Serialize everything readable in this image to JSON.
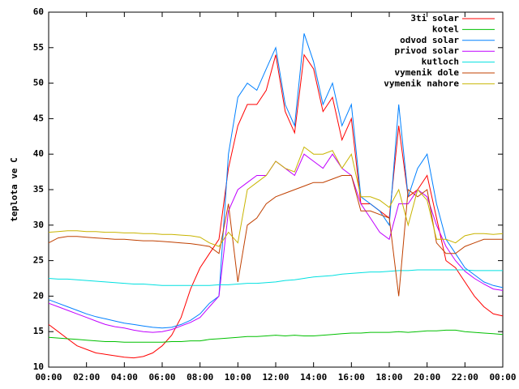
{
  "chart_data": {
    "type": "line",
    "y_label": "teplota ve C",
    "x": [
      0,
      0.5,
      1,
      1.5,
      2,
      2.5,
      3,
      3.5,
      4,
      4.5,
      5,
      5.5,
      6,
      6.5,
      7,
      7.5,
      8,
      8.5,
      9,
      9.5,
      10,
      10.5,
      11,
      11.5,
      12,
      12.5,
      13,
      13.5,
      14,
      14.5,
      15,
      15.5,
      16,
      16.5,
      17,
      17.5,
      18,
      18.5,
      19,
      19.5,
      20,
      20.5,
      21,
      21.5,
      22,
      22.5,
      23,
      23.5,
      24
    ],
    "xlim": [
      0,
      24
    ],
    "xticks": [
      {
        "value": 0,
        "label": "00:00"
      },
      {
        "value": 2,
        "label": "02:00"
      },
      {
        "value": 4,
        "label": "04:00"
      },
      {
        "value": 6,
        "label": "06:00"
      },
      {
        "value": 8,
        "label": "08:00"
      },
      {
        "value": 10,
        "label": "10:00"
      },
      {
        "value": 12,
        "label": "12:00"
      },
      {
        "value": 14,
        "label": "14:00"
      },
      {
        "value": 16,
        "label": "16:00"
      },
      {
        "value": 18,
        "label": "18:00"
      },
      {
        "value": 20,
        "label": "20:00"
      },
      {
        "value": 22,
        "label": "22:00"
      },
      {
        "value": 24,
        "label": "00:00"
      }
    ],
    "ylim": [
      10,
      60
    ],
    "yticks": [
      10,
      15,
      20,
      25,
      30,
      35,
      40,
      45,
      50,
      55,
      60
    ],
    "legend": "top-right",
    "series": [
      {
        "name": "3ti solar",
        "color": "#ff0000",
        "values": [
          16,
          15,
          14,
          13,
          12.5,
          12,
          11.8,
          11.6,
          11.4,
          11.3,
          11.5,
          12,
          13,
          14.5,
          17,
          21,
          24,
          26,
          28,
          38,
          44,
          47,
          47,
          49,
          54,
          46,
          43,
          54,
          52,
          46,
          48,
          42,
          45,
          33,
          33,
          32,
          31,
          44,
          34,
          35,
          37,
          31,
          25,
          24,
          22,
          20,
          18.5,
          17.5,
          17.2
        ]
      },
      {
        "name": "kotel",
        "color": "#00c000",
        "values": [
          14.2,
          14.1,
          14.0,
          13.9,
          13.8,
          13.7,
          13.6,
          13.6,
          13.5,
          13.5,
          13.5,
          13.5,
          13.5,
          13.6,
          13.6,
          13.7,
          13.7,
          13.9,
          14.0,
          14.1,
          14.2,
          14.3,
          14.3,
          14.4,
          14.5,
          14.4,
          14.5,
          14.4,
          14.4,
          14.5,
          14.6,
          14.7,
          14.8,
          14.8,
          14.9,
          14.9,
          14.9,
          15.0,
          14.9,
          15.0,
          15.1,
          15.1,
          15.2,
          15.2,
          15.0,
          14.9,
          14.8,
          14.7,
          14.6
        ]
      },
      {
        "name": "odvod solar",
        "color": "#0080ff",
        "values": [
          19.5,
          19,
          18.5,
          18,
          17.5,
          17.1,
          16.8,
          16.5,
          16.2,
          16,
          15.8,
          15.6,
          15.5,
          15.6,
          16,
          16.6,
          17.5,
          19,
          20,
          40,
          48,
          50,
          49,
          52,
          55,
          47,
          44,
          57,
          53,
          47,
          50,
          44,
          47,
          34,
          33,
          32,
          30,
          47,
          34,
          38,
          40,
          33,
          28,
          26,
          24,
          23,
          22,
          21.5,
          21.2
        ]
      },
      {
        "name": "privod solar",
        "color": "#c000ff",
        "values": [
          19,
          18.5,
          18,
          17.5,
          17,
          16.5,
          16,
          15.7,
          15.5,
          15.2,
          15,
          14.9,
          15,
          15.3,
          15.8,
          16.3,
          17,
          18.5,
          20,
          32,
          35,
          36,
          37,
          37,
          39,
          38,
          37,
          40,
          39,
          38,
          40,
          38,
          37,
          33,
          31,
          29,
          28,
          33,
          33,
          35,
          34,
          30,
          27,
          25,
          23.5,
          22.5,
          21.7,
          21,
          20.8
        ]
      },
      {
        "name": "kutloch",
        "color": "#00e0e0",
        "values": [
          22.5,
          22.4,
          22.4,
          22.3,
          22.2,
          22.1,
          22.0,
          21.9,
          21.8,
          21.7,
          21.7,
          21.6,
          21.5,
          21.5,
          21.5,
          21.5,
          21.5,
          21.5,
          21.6,
          21.6,
          21.7,
          21.8,
          21.8,
          21.9,
          22.0,
          22.2,
          22.3,
          22.5,
          22.7,
          22.8,
          22.9,
          23.1,
          23.2,
          23.3,
          23.4,
          23.4,
          23.5,
          23.6,
          23.6,
          23.7,
          23.7,
          23.7,
          23.7,
          23.7,
          23.7,
          23.6,
          23.6,
          23.6,
          23.6
        ]
      },
      {
        "name": "vymenik dole",
        "color": "#c04000",
        "values": [
          27.5,
          28.2,
          28.4,
          28.4,
          28.3,
          28.2,
          28.1,
          28,
          28,
          27.9,
          27.8,
          27.8,
          27.7,
          27.6,
          27.5,
          27.4,
          27.2,
          27,
          26,
          33,
          22,
          30,
          31,
          33,
          34,
          34.5,
          35,
          35.5,
          36,
          36,
          36.5,
          37,
          37,
          32,
          32,
          31.5,
          31,
          20,
          35,
          34,
          35,
          27.5,
          26,
          26,
          27,
          27.5,
          28,
          28,
          28
        ]
      },
      {
        "name": "vymenik nahore",
        "color": "#c8b400",
        "values": [
          29,
          29.1,
          29.2,
          29.2,
          29.1,
          29.1,
          29,
          29,
          28.9,
          28.9,
          28.8,
          28.8,
          28.7,
          28.7,
          28.6,
          28.5,
          28.3,
          27.5,
          27,
          29,
          27.5,
          35,
          36,
          37,
          39,
          38,
          37.5,
          41,
          40,
          40,
          40.5,
          38,
          40,
          34,
          34,
          33.5,
          32.5,
          35,
          30,
          35,
          33.5,
          28,
          28,
          27.5,
          28.5,
          28.8,
          28.8,
          28.7,
          28.8
        ]
      }
    ]
  }
}
